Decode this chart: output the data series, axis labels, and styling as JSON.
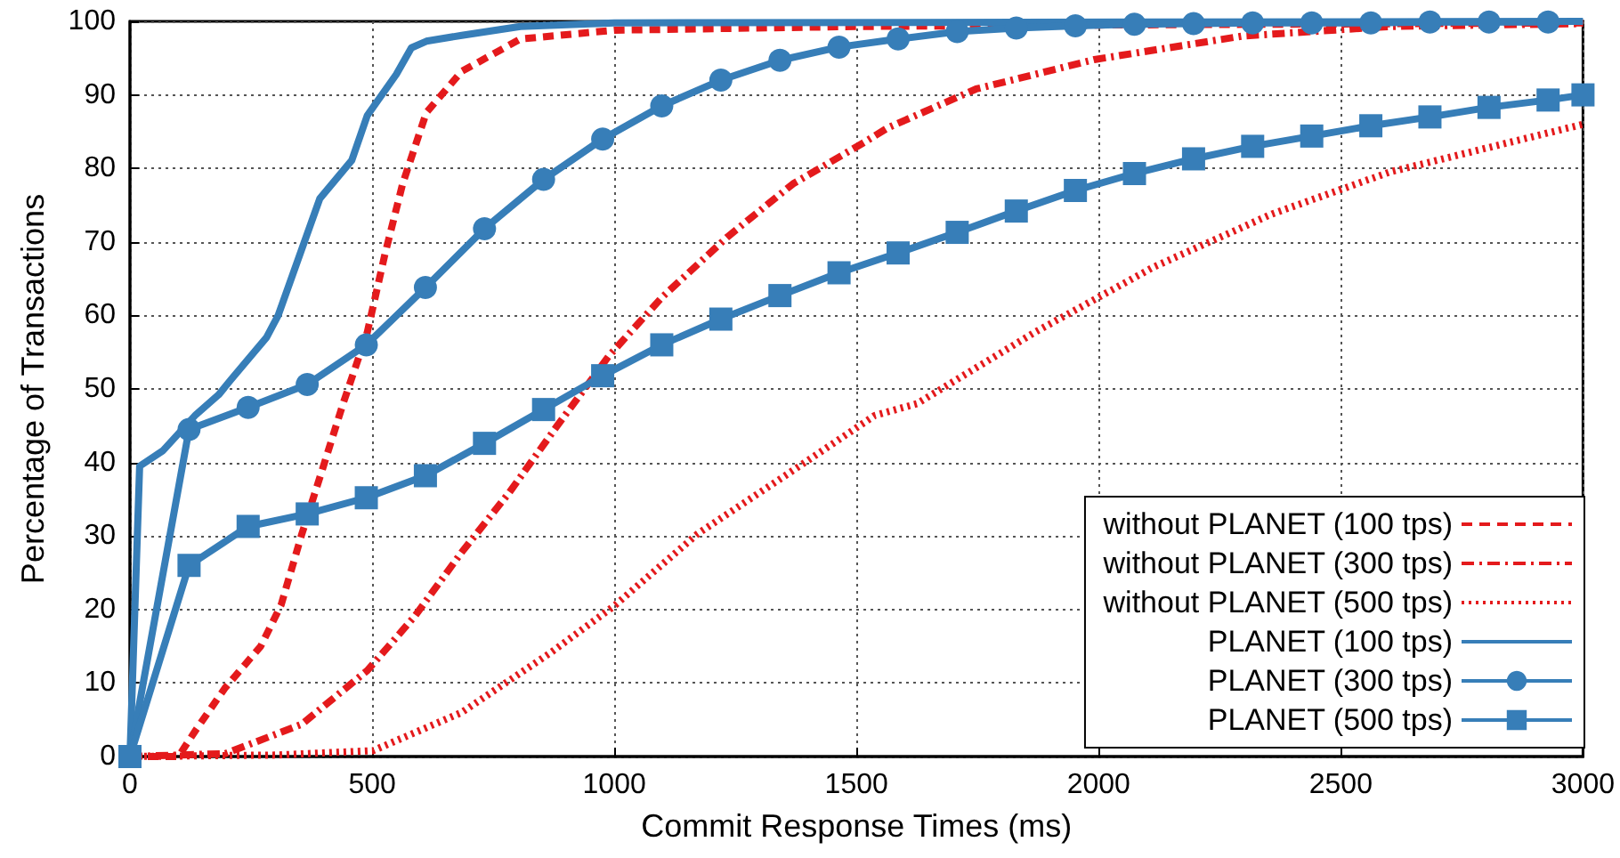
{
  "chart_data": {
    "type": "line",
    "xlabel": "Commit Response Times (ms)",
    "ylabel": "Percentage of Transactions",
    "xlim": [
      0,
      3000
    ],
    "xticks": [
      0,
      500,
      1000,
      1500,
      2000,
      2500,
      3000
    ],
    "ylim": [
      0,
      100
    ],
    "yticks": [
      0,
      10,
      20,
      30,
      40,
      50,
      60,
      70,
      80,
      90,
      100
    ],
    "grid": true,
    "legend": "bottom right",
    "series": [
      {
        "name": "without PLANET (100 tps)",
        "color": "#e41a1c",
        "line_style": "dashed",
        "marker": "none",
        "x": [
          0,
          100,
          136,
          196,
          270,
          312,
          355,
          398,
          440,
          490,
          526,
          563,
          612,
          685,
          806,
          1000,
          1500,
          2000,
          3000
        ],
        "values": [
          0,
          0,
          3.6,
          9.3,
          15,
          20.6,
          30.3,
          39.2,
          48,
          57.7,
          68.2,
          77.9,
          87.6,
          93.2,
          97.6,
          98.8,
          99.3,
          99.5,
          99.8
        ]
      },
      {
        "name": "without PLANET (300 tps)",
        "color": "#e41a1c",
        "line_style": "dashdot",
        "marker": "none",
        "x": [
          0,
          197,
          355,
          490,
          587,
          685,
          783,
          880,
          989,
          1099,
          1234,
          1369,
          1515,
          1564,
          1747,
          1991,
          2297,
          2601,
          3000
        ],
        "values": [
          0,
          0.4,
          4.4,
          11.7,
          19,
          27.8,
          35.9,
          44.8,
          54.5,
          62.5,
          70.7,
          77.9,
          83.5,
          85.5,
          90.8,
          94.8,
          98,
          99.3,
          99.7
        ]
      },
      {
        "name": "without PLANET (500 tps)",
        "color": "#e41a1c",
        "line_style": "dotted",
        "marker": "none",
        "x": [
          0,
          300,
          502,
          685,
          868,
          1002,
          1172,
          1355,
          1538,
          1625,
          1868,
          2114,
          2358,
          2601,
          2846,
          3000
        ],
        "values": [
          0,
          0.2,
          0.8,
          6,
          14.1,
          20.6,
          30.3,
          38.3,
          46.4,
          48,
          57.7,
          66.6,
          73.8,
          79.5,
          83.5,
          86
        ]
      },
      {
        "name": "PLANET (100 tps)",
        "color": "#377eb8",
        "line_style": "solid",
        "marker": "none",
        "x": [
          0,
          20,
          68,
          136,
          183,
          209,
          282,
          306,
          392,
          458,
          490,
          550,
          581,
          612,
          685,
          806,
          1000,
          3000
        ],
        "values": [
          0,
          39.5,
          41.6,
          46.5,
          49.2,
          51.3,
          57,
          60,
          75.9,
          81.1,
          87.2,
          92.8,
          96.4,
          97.3,
          98.1,
          99.3,
          99.8,
          100
        ]
      },
      {
        "name": "PLANET (300 tps)",
        "color": "#377eb8",
        "line_style": "solid",
        "marker": "circle",
        "x": [
          0,
          122,
          244,
          366,
          488,
          610,
          732,
          854,
          976,
          1098,
          1220,
          1342,
          1464,
          1586,
          1708,
          1830,
          1952,
          2074,
          2196,
          2318,
          2440,
          2562,
          2684,
          2806,
          2928
        ],
        "values": [
          0,
          44.5,
          47.5,
          50.6,
          56,
          63.8,
          71.8,
          78.5,
          84,
          88.5,
          92,
          94.7,
          96.5,
          97.6,
          98.6,
          99.1,
          99.4,
          99.6,
          99.7,
          99.8,
          99.8,
          99.8,
          99.9,
          99.9,
          99.9
        ]
      },
      {
        "name": "PLANET (500 tps)",
        "color": "#377eb8",
        "line_style": "solid",
        "marker": "square",
        "x": [
          0,
          122,
          244,
          366,
          488,
          610,
          732,
          854,
          976,
          1098,
          1220,
          1342,
          1464,
          1586,
          1708,
          1830,
          1952,
          2074,
          2196,
          2318,
          2440,
          2562,
          2684,
          2806,
          2928,
          3000
        ],
        "values": [
          0,
          26,
          31.3,
          33,
          35.2,
          38.2,
          42.6,
          47.2,
          51.8,
          56,
          59.5,
          62.7,
          65.8,
          68.5,
          71.3,
          74.2,
          77,
          79.3,
          81.3,
          83,
          84.4,
          85.8,
          87,
          88.3,
          89.3,
          90
        ]
      }
    ]
  }
}
